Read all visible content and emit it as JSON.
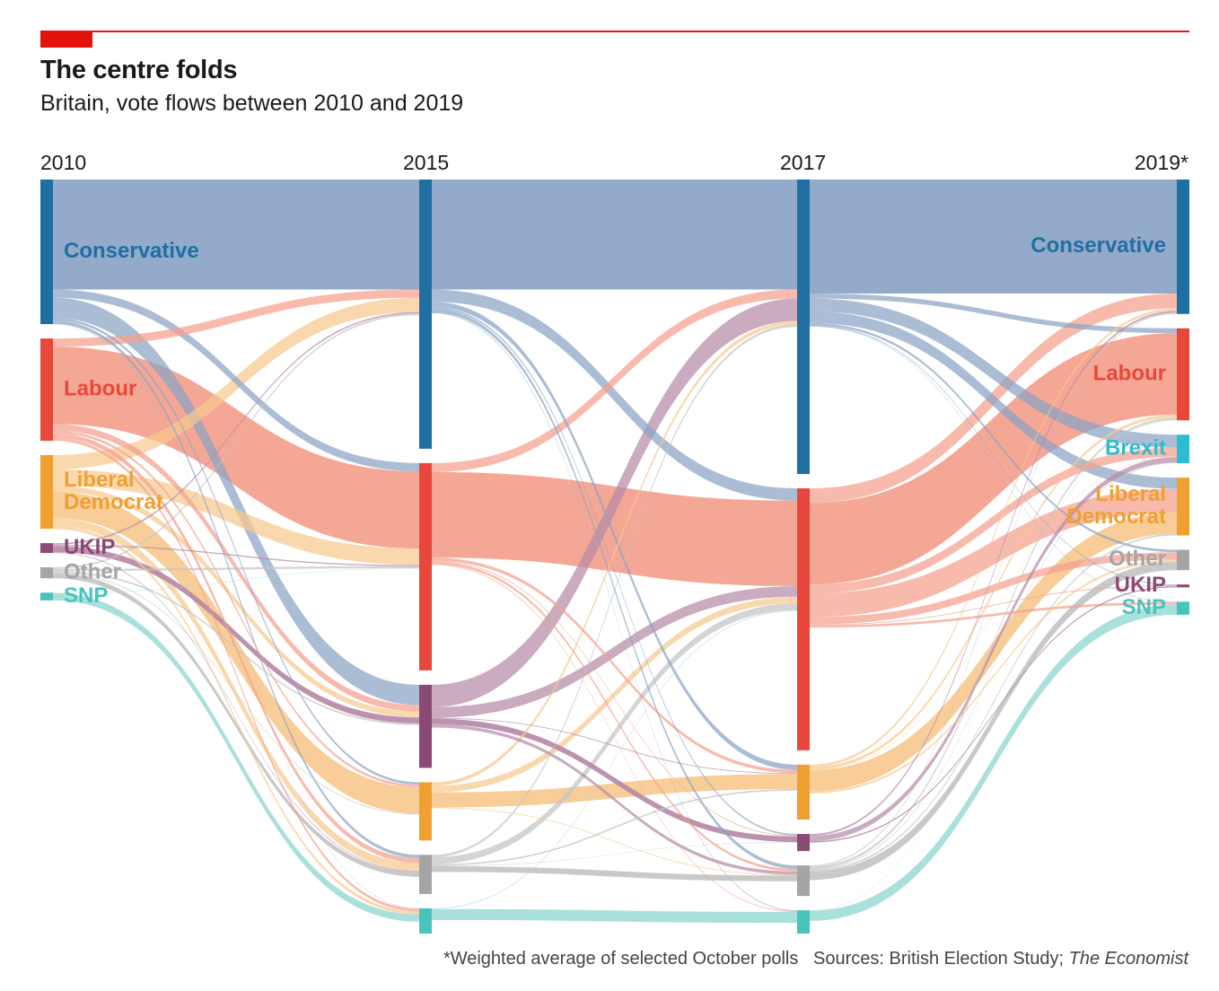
{
  "header": {
    "title": "The centre folds",
    "subtitle": "Britain, vote flows between 2010 and 2019"
  },
  "footnote": {
    "note": "*Weighted average of selected October polls",
    "sources_prefix": "Sources: British Election Study; ",
    "sources_publication": "The Economist"
  },
  "chart_data": {
    "type": "sankey",
    "title": "The centre folds",
    "subtitle": "Britain, vote flows between 2010 and 2019",
    "units": "share of sample (%)",
    "columns": [
      "2010",
      "2015",
      "2017",
      "2019*"
    ],
    "parties": {
      "con": {
        "name": "Conservative",
        "color": "#1f6fa3",
        "flow_color": "#8aa3c5"
      },
      "lab": {
        "name": "Labour",
        "color": "#e8473c",
        "flow_color": "#f4a08c"
      },
      "brexit": {
        "name": "Brexit",
        "color": "#2dbcd0",
        "flow_color": "#8fd8e3"
      },
      "ld": {
        "name": "Liberal Democrat",
        "color": "#f0a031",
        "flow_color": "#f7c98f"
      },
      "ukip": {
        "name": "UKIP",
        "color": "#8a4a75",
        "flow_color": "#b68aa8"
      },
      "other": {
        "name": "Other",
        "color": "#a5a5a5",
        "flow_color": "#c4c4c4"
      },
      "snp": {
        "name": "SNP",
        "color": "#49c4bd",
        "flow_color": "#a3ddd9"
      }
    },
    "nodes": [
      {
        "col": 0,
        "order": [
          "con",
          "lab",
          "ld",
          "ukip",
          "other",
          "snp"
        ]
      },
      {
        "col": 1,
        "order": [
          "con",
          "lab",
          "ukip",
          "ld",
          "other",
          "snp"
        ]
      },
      {
        "col": 2,
        "order": [
          "con",
          "lab",
          "ld",
          "ukip",
          "other",
          "snp"
        ]
      },
      {
        "col": 3,
        "order": [
          "con",
          "lab",
          "brexit",
          "ld",
          "other",
          "ukip",
          "snp"
        ]
      }
    ],
    "labels_shown": {
      "left": [
        "Conservative",
        "Labour",
        "Liberal Democrat",
        "UKIP",
        "Other",
        "SNP"
      ],
      "right": [
        "Conservative",
        "Labour",
        "Brexit",
        "Liberal Democrat",
        "Other",
        "UKIP",
        "SNP"
      ]
    },
    "flows": [
      [
        {
          "from": "con",
          "to": "con",
          "value": 27
        },
        {
          "from": "con",
          "to": "lab",
          "value": 2
        },
        {
          "from": "con",
          "to": "ukip",
          "value": 5
        },
        {
          "from": "con",
          "to": "ld",
          "value": 0.6
        },
        {
          "from": "con",
          "to": "other",
          "value": 0.8
        },
        {
          "from": "con",
          "to": "snp",
          "value": 0.1
        },
        {
          "from": "lab",
          "to": "con",
          "value": 2
        },
        {
          "from": "lab",
          "to": "lab",
          "value": 19
        },
        {
          "from": "lab",
          "to": "ukip",
          "value": 1.6
        },
        {
          "from": "lab",
          "to": "ld",
          "value": 0.6
        },
        {
          "from": "lab",
          "to": "other",
          "value": 1.2
        },
        {
          "from": "lab",
          "to": "snp",
          "value": 0.7
        },
        {
          "from": "ld",
          "to": "con",
          "value": 3.5
        },
        {
          "from": "ld",
          "to": "lab",
          "value": 4
        },
        {
          "from": "ld",
          "to": "ukip",
          "value": 1.4
        },
        {
          "from": "ld",
          "to": "ld",
          "value": 6.5
        },
        {
          "from": "ld",
          "to": "other",
          "value": 2
        },
        {
          "from": "ld",
          "to": "snp",
          "value": 0.7
        },
        {
          "from": "ukip",
          "to": "con",
          "value": 0.4
        },
        {
          "from": "ukip",
          "to": "lab",
          "value": 0.3
        },
        {
          "from": "ukip",
          "to": "ukip",
          "value": 1.5
        },
        {
          "from": "ukip",
          "to": "other",
          "value": 0.2
        },
        {
          "from": "other",
          "to": "con",
          "value": 0.4
        },
        {
          "from": "other",
          "to": "lab",
          "value": 0.5
        },
        {
          "from": "other",
          "to": "ukip",
          "value": 0.4
        },
        {
          "from": "other",
          "to": "ld",
          "value": 0.2
        },
        {
          "from": "other",
          "to": "other",
          "value": 1.2
        },
        {
          "from": "snp",
          "to": "snp",
          "value": 1.8
        },
        {
          "from": "snp",
          "to": "lab",
          "value": 0.1
        }
      ],
      [
        {
          "from": "con",
          "to": "con",
          "value": 27
        },
        {
          "from": "con",
          "to": "lab",
          "value": 3
        },
        {
          "from": "con",
          "to": "ld",
          "value": 1.3
        },
        {
          "from": "con",
          "to": "ukip",
          "value": 0.4
        },
        {
          "from": "con",
          "to": "other",
          "value": 0.9
        },
        {
          "from": "con",
          "to": "snp",
          "value": 0.2
        },
        {
          "from": "lab",
          "to": "con",
          "value": 2.2
        },
        {
          "from": "lab",
          "to": "lab",
          "value": 21
        },
        {
          "from": "lab",
          "to": "ld",
          "value": 0.8
        },
        {
          "from": "lab",
          "to": "ukip",
          "value": 0.2
        },
        {
          "from": "lab",
          "to": "other",
          "value": 0.6
        },
        {
          "from": "lab",
          "to": "snp",
          "value": 0.2
        },
        {
          "from": "ukip",
          "to": "con",
          "value": 5.5
        },
        {
          "from": "ukip",
          "to": "lab",
          "value": 2.6
        },
        {
          "from": "ukip",
          "to": "ld",
          "value": 0.2
        },
        {
          "from": "ukip",
          "to": "ukip",
          "value": 1.4
        },
        {
          "from": "ukip",
          "to": "other",
          "value": 0.8
        },
        {
          "from": "ld",
          "to": "con",
          "value": 0.9
        },
        {
          "from": "ld",
          "to": "lab",
          "value": 1.6
        },
        {
          "from": "ld",
          "to": "ld",
          "value": 3.7
        },
        {
          "from": "ld",
          "to": "other",
          "value": 0.2
        },
        {
          "from": "other",
          "to": "con",
          "value": 0.6
        },
        {
          "from": "other",
          "to": "lab",
          "value": 1.7
        },
        {
          "from": "other",
          "to": "ld",
          "value": 0.4
        },
        {
          "from": "other",
          "to": "ukip",
          "value": 0.1
        },
        {
          "from": "other",
          "to": "other",
          "value": 1.4
        },
        {
          "from": "snp",
          "to": "lab",
          "value": 0.2
        },
        {
          "from": "snp",
          "to": "snp",
          "value": 2.7
        }
      ],
      [
        {
          "from": "con",
          "to": "con",
          "value": 28
        },
        {
          "from": "con",
          "to": "lab",
          "value": 1.2
        },
        {
          "from": "con",
          "to": "brexit",
          "value": 3.2
        },
        {
          "from": "con",
          "to": "ld",
          "value": 2.8
        },
        {
          "from": "con",
          "to": "other",
          "value": 0.6
        },
        {
          "from": "con",
          "to": "ukip",
          "value": 0.2
        },
        {
          "from": "con",
          "to": "snp",
          "value": 0.1
        },
        {
          "from": "lab",
          "to": "con",
          "value": 3.6
        },
        {
          "from": "lab",
          "to": "lab",
          "value": 20
        },
        {
          "from": "lab",
          "to": "brexit",
          "value": 2.2
        },
        {
          "from": "lab",
          "to": "ld",
          "value": 5.8
        },
        {
          "from": "lab",
          "to": "other",
          "value": 1.8
        },
        {
          "from": "lab",
          "to": "ukip",
          "value": 0.2
        },
        {
          "from": "lab",
          "to": "snp",
          "value": 0.6
        },
        {
          "from": "ld",
          "to": "con",
          "value": 0.6
        },
        {
          "from": "ld",
          "to": "lab",
          "value": 0.7
        },
        {
          "from": "ld",
          "to": "brexit",
          "value": 0.1
        },
        {
          "from": "ld",
          "to": "ld",
          "value": 5.2
        },
        {
          "from": "ld",
          "to": "other",
          "value": 0.5
        },
        {
          "from": "ukip",
          "to": "con",
          "value": 0.5
        },
        {
          "from": "ukip",
          "to": "brexit",
          "value": 1.3
        },
        {
          "from": "ukip",
          "to": "ukip",
          "value": 0.3
        },
        {
          "from": "other",
          "to": "con",
          "value": 0.3
        },
        {
          "from": "other",
          "to": "lab",
          "value": 0.6
        },
        {
          "from": "other",
          "to": "brexit",
          "value": 0.2
        },
        {
          "from": "other",
          "to": "ld",
          "value": 0.4
        },
        {
          "from": "other",
          "to": "other",
          "value": 2.1
        },
        {
          "from": "snp",
          "to": "snp",
          "value": 2.5
        },
        {
          "from": "snp",
          "to": "lab",
          "value": 0.1
        }
      ]
    ]
  }
}
